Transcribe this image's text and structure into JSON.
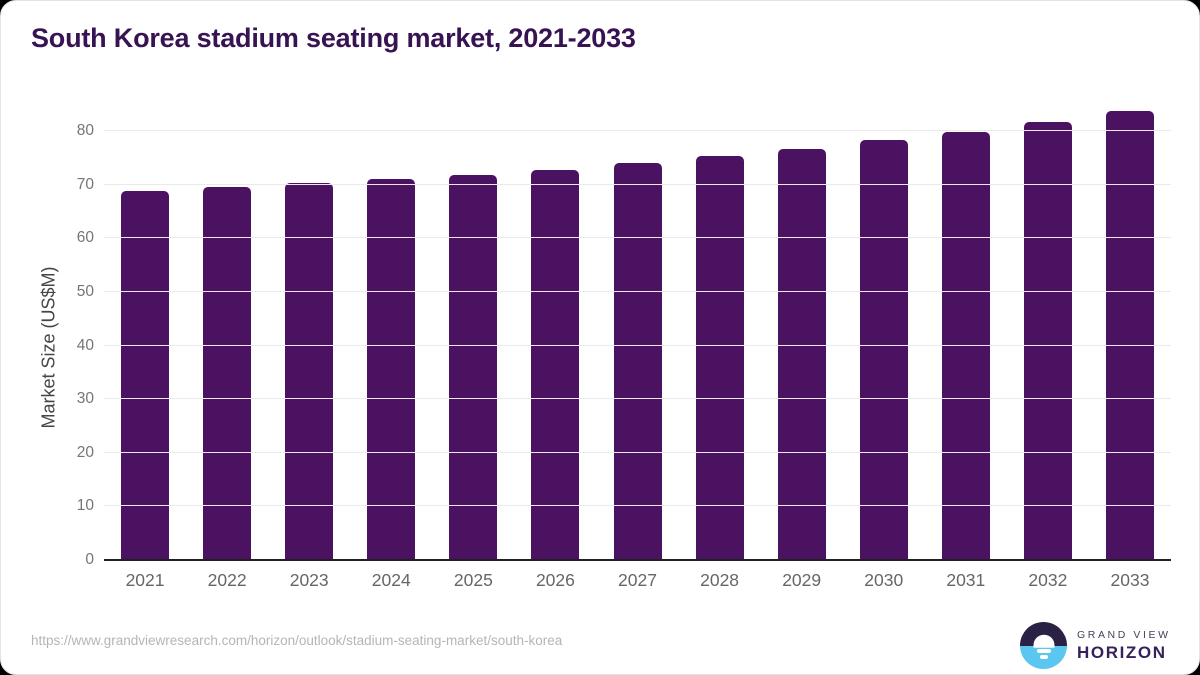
{
  "title": "South Korea stadium seating market, 2021-2033",
  "chart_data": {
    "type": "bar",
    "title": "South Korea stadium seating market, 2021-2033",
    "categories": [
      "2021",
      "2022",
      "2023",
      "2024",
      "2025",
      "2026",
      "2027",
      "2028",
      "2029",
      "2030",
      "2031",
      "2032",
      "2033"
    ],
    "values": [
      68.7,
      69.3,
      70.1,
      70.8,
      71.6,
      72.6,
      73.8,
      75.1,
      76.5,
      78.1,
      79.7,
      81.5,
      83.5
    ],
    "xlabel": "",
    "ylabel": "Market Size (US$M)",
    "ylim": [
      0,
      80
    ],
    "yticks": [
      0,
      10,
      20,
      30,
      40,
      50,
      60,
      70,
      80
    ],
    "grid": true,
    "legend": "none",
    "bar_color": "#4a1260",
    "gridline_color": "#eaeaea",
    "axis_line_color": "#212121",
    "tick_label_color": "#757575",
    "x_label_color": "#666666",
    "title_color": "#371353"
  },
  "footer": {
    "source_url": "https://www.grandviewresearch.com/horizon/outlook/stadium-seating-market/south-korea",
    "logo": {
      "line1": "GRAND VIEW",
      "line2": "HORIZON",
      "mark_top_color": "#2b2145",
      "mark_bottom_color": "#5bc7f1"
    }
  }
}
